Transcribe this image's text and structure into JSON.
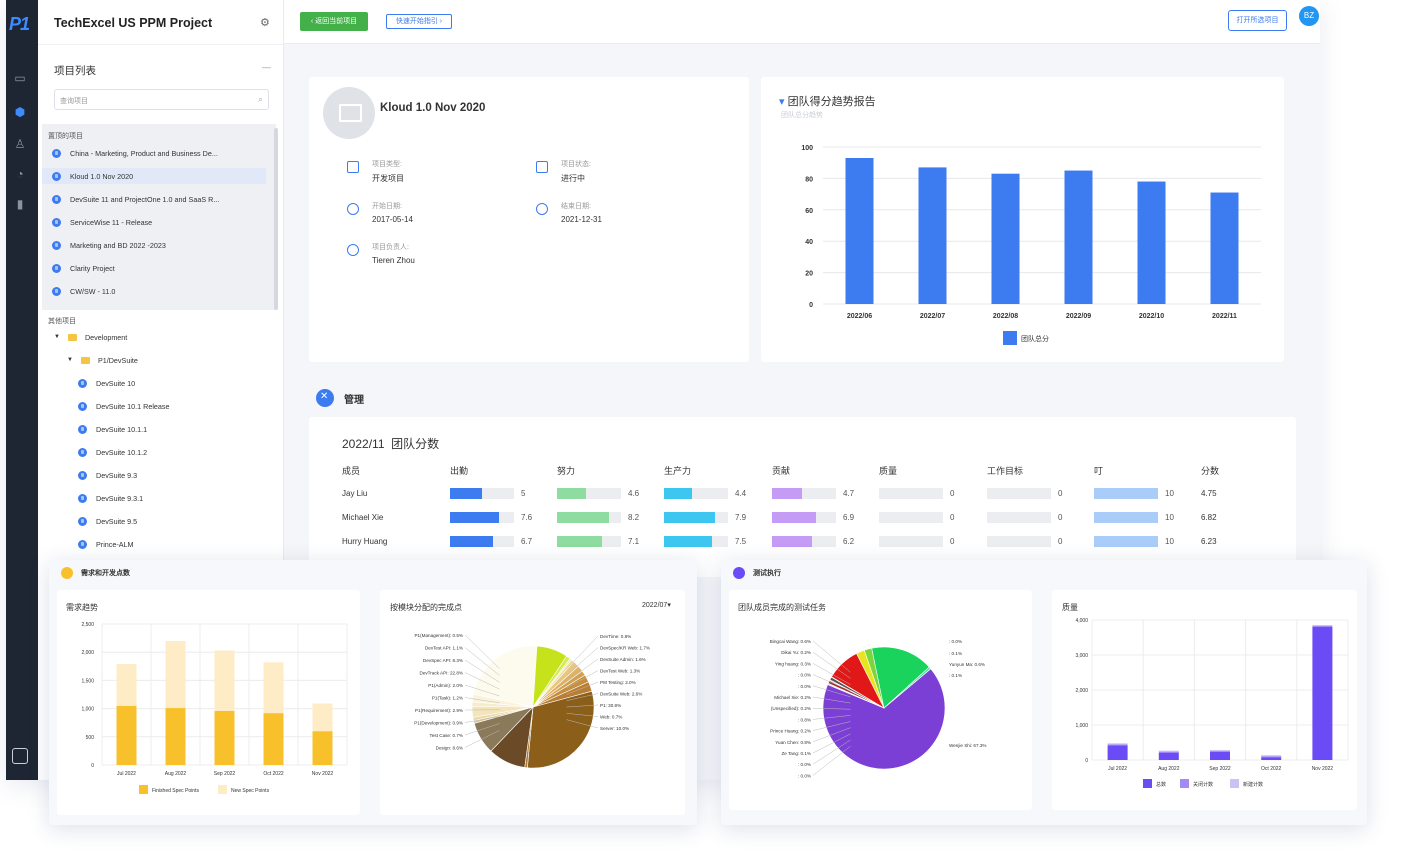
{
  "brand": {
    "logo": "P1"
  },
  "sidebar": {
    "project_title": "TechExcel US PPM Project",
    "list_title": "项目列表",
    "search_placeholder": "查询项目",
    "pinned_label": "置顶的项目",
    "pinned": [
      "China - Marketing, Product and Business De...",
      "Kloud 1.0 Nov 2020",
      "DevSuite 11 and ProjectOne 1.0 and SaaS R...",
      "ServiceWise 11 - Release",
      "Marketing and BD 2022 -2023",
      "Clarity Project",
      "CW/SW - 11.0"
    ],
    "other_label": "其他项目",
    "folders": [
      "Development",
      "P1/DevSuite"
    ],
    "tree_items": [
      "DevSuite 10",
      "DevSuite 10.1 Release",
      "DevSuite 10.1.1",
      "DevSuite 10.1.2",
      "DevSuite 9.3",
      "DevSuite 9.3.1",
      "DevSuite 9.5",
      "Prince-ALM"
    ]
  },
  "topbar": {
    "back": "返回当前项目",
    "guide": "快速开始指引",
    "open_all": "打开所选项目",
    "avatar": "BZ"
  },
  "project": {
    "name": "Kloud 1.0 Nov 2020",
    "type_label": "项目类型:",
    "type_value": "开发项目",
    "status_label": "项目状态:",
    "status_value": "进行中",
    "start_label": "开始日期:",
    "start_value": "2017-05-14",
    "end_label": "结束日期:",
    "end_value": "2021-12-31",
    "owner_label": "项目负责人:",
    "owner_value": "Tieren Zhou"
  },
  "team_trend": {
    "title": "团队得分趋势报告",
    "subtitle": "团队总分趋势",
    "chart_data": {
      "type": "bar",
      "categories": [
        "2022/06",
        "2022/07",
        "2022/08",
        "2022/09",
        "2022/10",
        "2022/11"
      ],
      "series": [
        {
          "name": "团队总分",
          "values": [
            93,
            87,
            83,
            85,
            78,
            71
          ]
        }
      ],
      "ylim": [
        0,
        100
      ],
      "yticks": [
        0,
        20,
        40,
        60,
        80,
        100
      ],
      "color": "#3d7bf0"
    }
  },
  "management": {
    "title": "管理",
    "period_title": "2022/11  团队分数",
    "columns": [
      "成员",
      "出勤",
      "努力",
      "生产力",
      "贡献",
      "质量",
      "工作目标",
      "叮",
      "分数"
    ],
    "column_colors": [
      "#3d7bf0",
      "#8fdca0",
      "#3cc6f0",
      "#c49cf5",
      "#e6e8eb",
      "#e6e8eb",
      "#a9ccf9"
    ],
    "rows": [
      {
        "name": "Jay Liu",
        "values": [
          5,
          4.6,
          4.4,
          4.7,
          0,
          0,
          10
        ],
        "score": "4.75"
      },
      {
        "name": "Michael Xie",
        "values": [
          7.6,
          8.2,
          7.9,
          6.9,
          0,
          0,
          10
        ],
        "score": "6.82"
      },
      {
        "name": "Hurry Huang",
        "values": [
          6.7,
          7.1,
          7.5,
          6.2,
          0,
          0,
          10
        ],
        "score": "6.23"
      }
    ]
  },
  "req_panel": {
    "title": "需求和开发点数",
    "chart_title": "需求趋势",
    "chart_data": {
      "type": "bar",
      "stacked": true,
      "categories": [
        "Jul 2022",
        "Aug 2022",
        "Sep 2022",
        "Oct 2022",
        "Nov 2022"
      ],
      "series": [
        {
          "name": "Finished Spec Points",
          "values": [
            1050,
            1010,
            960,
            920,
            600
          ],
          "color": "#f8c12b"
        },
        {
          "name": "New Spec Points",
          "values": [
            740,
            1190,
            1070,
            900,
            490
          ],
          "color": "#fdecc5"
        }
      ],
      "ylim": [
        0,
        2500
      ],
      "yticks": [
        0,
        500,
        1000,
        1500,
        2000,
        2500
      ]
    }
  },
  "module_panel": {
    "title": "按模块分配的完成点",
    "period": "2022/07",
    "chart_data": {
      "type": "pie",
      "slices": [
        {
          "label": "P1",
          "value": 30.8,
          "color": "#8b5e1a"
        },
        {
          "label": "Web",
          "value": 0.7,
          "color": "#a97b3c"
        },
        {
          "label": "Server",
          "value": 10.0,
          "color": "#6b4a28"
        },
        {
          "label": "Design",
          "value": 8.6,
          "color": "#8a7a5a"
        },
        {
          "label": "Test Case",
          "value": 0.7,
          "color": "#d8c290"
        },
        {
          "label": "P1(Development)",
          "value": 0.9,
          "color": "#ecd9a8"
        },
        {
          "label": "P1(Requirement)",
          "value": 2.9,
          "color": "#f3e4b9"
        },
        {
          "label": "P1(Task)",
          "value": 1.2,
          "color": "#f7ecc9"
        },
        {
          "label": "P1(Admin)",
          "value": 2.0,
          "color": "#faf3d9"
        },
        {
          "label": "DevTrack API",
          "value": 22.8,
          "color": "#fdfbee"
        },
        {
          "label": "DevSpec API",
          "value": 8.3,
          "color": "#c6e21a"
        },
        {
          "label": "DevTest API",
          "value": 1.1,
          "color": "#d6ea55"
        },
        {
          "label": "P1(Management)",
          "value": 0.5,
          "color": "#e6f29a"
        },
        {
          "label": "DevTime",
          "value": 0.8,
          "color": "#f2d9a0"
        },
        {
          "label": "DevSpec/KR Web",
          "value": 1.7,
          "color": "#e8c680"
        },
        {
          "label": "DevSuite Admin",
          "value": 1.6,
          "color": "#ddb265"
        },
        {
          "label": "DevTest Web",
          "value": 1.3,
          "color": "#d2a050"
        },
        {
          "label": "PM Testing",
          "value": 2.0,
          "color": "#c58f40"
        },
        {
          "label": "DevSuite Web",
          "value": 2.6,
          "color": "#b87e34"
        }
      ],
      "labels_left": [
        "P1(Management): 0.5%",
        "DevTest API: 1.1%",
        "DevSpec API: 8.3%",
        "DevTrack API: 22.8%",
        "P1(Admin): 2.0%",
        "P1(Task): 1.2%",
        "P1(Requirement): 2.9%",
        "P1(Development): 0.9%",
        "Test Case: 0.7%",
        "Design: 8.6%"
      ],
      "labels_right": [
        "DevTime: 0.8%",
        "DevSpec/KR Web: 1.7%",
        "DevSuite Admin: 1.6%",
        "DevTest Web: 1.3%",
        "PM Testing: 2.0%",
        "DevSuite Web: 2.6%",
        "P1: 30.8%",
        "Web: 0.7%",
        "Server: 10.0%"
      ]
    }
  },
  "test_panel": {
    "title": "测试执行",
    "chart_title": "团队成员完成的测试任务",
    "chart_data": {
      "type": "pie",
      "slices": [
        {
          "label": "Wenjie Shi",
          "value": 67.3,
          "color": "#7b3fd6"
        },
        {
          "label": "Michael Xie",
          "value": 0.2,
          "color": "#1c1c3c"
        },
        {
          "label": "(Unspecified)",
          "value": 0.2,
          "color": "#333366"
        },
        {
          "label": "",
          "value": 0.8,
          "color": "#aa2a2a"
        },
        {
          "label": "Prince Huang",
          "value": 0.2,
          "color": "#222"
        },
        {
          "label": "Yuan Chen",
          "value": 0.8,
          "color": "#555"
        },
        {
          "label": "Ze Tang",
          "value": 0.1,
          "color": "#777"
        },
        {
          "label": "",
          "value": 9.0,
          "color": "#e01818"
        },
        {
          "label": "",
          "value": 2.2,
          "color": "#e9e51c"
        },
        {
          "label": "",
          "value": 2.0,
          "color": "#7ad63c"
        },
        {
          "label": "",
          "value": 16.5,
          "color": "#19d35c"
        },
        {
          "label": "Yunyun Ma",
          "value": 0.6,
          "color": "#50e6a0"
        }
      ],
      "labels_left": [
        "Bingcai Wang: 0.6%",
        "Dikai Yu: 0.2%",
        "Ying huang: 0.3%",
        ": 0.0%",
        ": 0.0%",
        "Michael Xie: 0.2%",
        "(Unspecified): 0.2%",
        ": 0.8%",
        "Prince Huang: 0.2%",
        "Yuan Chen: 0.8%",
        "Ze Tang: 0.1%",
        ": 0.0%",
        ": 0.0%"
      ],
      "labels_right": [
        ": 0.0%",
        ": 0.1%",
        "Yunyun Ma: 0.6%",
        ": 0.1%",
        "Wenjie Shi: 67.3%"
      ]
    }
  },
  "quality_panel": {
    "title": "质量",
    "chart_data": {
      "type": "bar",
      "categories": [
        "Jul 2022",
        "Aug 2022",
        "Sep 2022",
        "Oct 2022",
        "Nov 2022"
      ],
      "series": [
        {
          "name": "总数",
          "values": [
            420,
            210,
            230,
            80,
            3800
          ],
          "color": "#6a4bf5"
        },
        {
          "name": "关闭计数",
          "values": [
            10,
            10,
            10,
            10,
            10
          ],
          "color": "#a48af7"
        },
        {
          "name": "新建计数",
          "values": [
            5,
            5,
            5,
            5,
            5
          ],
          "color": "#c8c3f5"
        }
      ],
      "ylim": [
        0,
        4000
      ],
      "yticks": [
        0,
        1000,
        2000,
        3000,
        4000
      ]
    }
  }
}
